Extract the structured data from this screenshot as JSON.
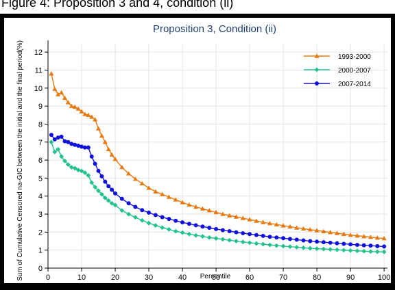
{
  "figure_caption": "Figure 4: Proposition 3 and 4, condition (ii)",
  "chart_data": {
    "type": "line",
    "title": "Proposition 3, Condition (ii)",
    "xlabel": "Percentile",
    "ylabel": "Sum of Cumulative Censored na-GIC between the initial and the final period(%)",
    "xlim": [
      0,
      101
    ],
    "ylim": [
      0,
      12.5
    ],
    "xticks": [
      0,
      10,
      20,
      30,
      40,
      50,
      60,
      70,
      80,
      90,
      100
    ],
    "yticks": [
      0,
      1,
      2,
      3,
      4,
      5,
      6,
      7,
      8,
      9,
      10,
      11,
      12
    ],
    "grid": true,
    "legend_position": "top-right",
    "series": [
      {
        "name": "1993-2000",
        "color": "#e8790f",
        "marker": "triangle",
        "x": [
          1,
          2,
          3,
          4,
          5,
          6,
          7,
          8,
          9,
          10,
          11,
          12,
          13,
          14,
          15,
          16,
          17,
          18,
          19,
          20,
          22,
          24,
          26,
          28,
          30,
          32,
          34,
          36,
          38,
          40,
          42,
          44,
          46,
          48,
          50,
          52,
          54,
          56,
          58,
          60,
          62,
          64,
          66,
          68,
          70,
          72,
          74,
          76,
          78,
          80,
          82,
          84,
          86,
          88,
          90,
          92,
          94,
          96,
          98,
          100
        ],
        "y": [
          10.8,
          9.95,
          9.65,
          9.75,
          9.45,
          9.2,
          9.0,
          8.95,
          8.85,
          8.7,
          8.55,
          8.5,
          8.4,
          8.25,
          7.75,
          7.35,
          7.0,
          6.6,
          6.3,
          6.05,
          5.6,
          5.25,
          4.95,
          4.7,
          4.45,
          4.25,
          4.1,
          3.95,
          3.8,
          3.65,
          3.52,
          3.4,
          3.3,
          3.2,
          3.1,
          3.0,
          2.92,
          2.85,
          2.77,
          2.7,
          2.62,
          2.55,
          2.48,
          2.42,
          2.36,
          2.3,
          2.24,
          2.19,
          2.14,
          2.09,
          2.04,
          1.99,
          1.94,
          1.89,
          1.84,
          1.8,
          1.76,
          1.72,
          1.68,
          1.65
        ]
      },
      {
        "name": "2000-2007",
        "color": "#20c28a",
        "marker": "diamond",
        "x": [
          1,
          2,
          3,
          4,
          5,
          6,
          7,
          8,
          9,
          10,
          11,
          12,
          13,
          14,
          15,
          16,
          17,
          18,
          19,
          20,
          22,
          24,
          26,
          28,
          30,
          32,
          34,
          36,
          38,
          40,
          42,
          44,
          46,
          48,
          50,
          52,
          54,
          56,
          58,
          60,
          62,
          64,
          66,
          68,
          70,
          72,
          74,
          76,
          78,
          80,
          82,
          84,
          86,
          88,
          90,
          92,
          94,
          96,
          98,
          100
        ],
        "y": [
          7.0,
          6.45,
          6.6,
          6.2,
          5.95,
          5.75,
          5.6,
          5.55,
          5.45,
          5.4,
          5.3,
          5.15,
          4.75,
          4.5,
          4.3,
          4.1,
          3.9,
          3.75,
          3.6,
          3.5,
          3.2,
          3.0,
          2.82,
          2.65,
          2.5,
          2.37,
          2.25,
          2.15,
          2.05,
          1.97,
          1.89,
          1.82,
          1.76,
          1.7,
          1.65,
          1.6,
          1.55,
          1.5,
          1.45,
          1.41,
          1.37,
          1.33,
          1.29,
          1.25,
          1.22,
          1.19,
          1.16,
          1.13,
          1.1,
          1.08,
          1.06,
          1.04,
          1.02,
          1.0,
          0.98,
          0.96,
          0.94,
          0.92,
          0.91,
          0.9
        ]
      },
      {
        "name": "2007-2014",
        "color": "#1010dd",
        "marker": "circle",
        "x": [
          1,
          2,
          3,
          4,
          5,
          6,
          7,
          8,
          9,
          10,
          11,
          12,
          13,
          14,
          15,
          16,
          17,
          18,
          19,
          20,
          22,
          24,
          26,
          28,
          30,
          32,
          34,
          36,
          38,
          40,
          42,
          44,
          46,
          48,
          50,
          52,
          54,
          56,
          58,
          60,
          62,
          64,
          66,
          68,
          70,
          72,
          74,
          76,
          78,
          80,
          82,
          84,
          86,
          88,
          90,
          92,
          94,
          96,
          98,
          100
        ],
        "y": [
          7.4,
          7.15,
          7.25,
          7.3,
          7.05,
          7.0,
          6.9,
          6.85,
          6.8,
          6.75,
          6.7,
          6.7,
          6.2,
          5.8,
          5.4,
          5.1,
          4.8,
          4.55,
          4.35,
          4.15,
          3.85,
          3.6,
          3.4,
          3.22,
          3.08,
          2.95,
          2.83,
          2.73,
          2.63,
          2.54,
          2.46,
          2.38,
          2.31,
          2.24,
          2.17,
          2.11,
          2.05,
          1.99,
          1.94,
          1.89,
          1.84,
          1.79,
          1.74,
          1.7,
          1.66,
          1.62,
          1.58,
          1.54,
          1.5,
          1.47,
          1.44,
          1.41,
          1.38,
          1.35,
          1.32,
          1.29,
          1.27,
          1.25,
          1.22,
          1.2
        ]
      }
    ]
  }
}
